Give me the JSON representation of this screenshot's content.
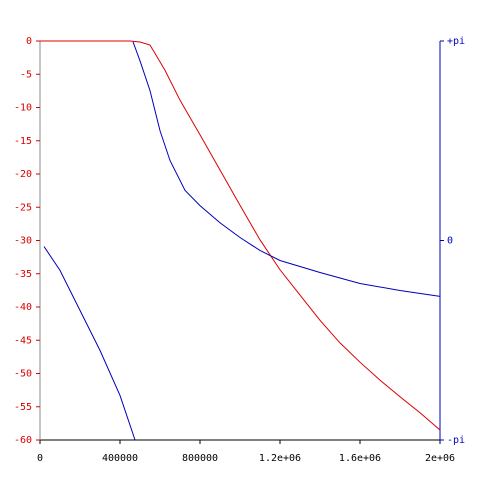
{
  "chart_data": {
    "type": "line",
    "xlim": [
      0,
      2000000
    ],
    "xticks": [
      0,
      400000,
      800000,
      {
        "value": 1200000,
        "label": "1.2e+06"
      },
      {
        "value": 1600000,
        "label": "1.6e+06"
      },
      {
        "value": 2000000,
        "label": "2e+06"
      }
    ],
    "ylim": [
      -60,
      0
    ],
    "yticks": [
      0,
      -5,
      -10,
      -15,
      -20,
      -25,
      -30,
      -35,
      -40,
      -45,
      -50,
      -55,
      -60
    ],
    "y2lim": [
      -3.14159,
      3.14159
    ],
    "y2ticks": [
      {
        "value": 3.14159,
        "label": "+pi"
      },
      0,
      {
        "value": -3.14159,
        "label": "-pi"
      }
    ],
    "series": [
      {
        "color": "#dd0000",
        "x": [
          0,
          450000,
          500000,
          550000,
          625000,
          700000,
          800000,
          900000,
          1000000,
          1100000,
          1200000,
          1300000,
          1400000,
          1500000,
          1600000,
          1700000,
          1800000,
          1900000,
          2000000
        ],
        "values": [
          0,
          0,
          -0.15,
          -0.6,
          -4.4,
          -8.9,
          -14.1,
          -19.4,
          -24.7,
          -29.9,
          -34.4,
          -38.2,
          -42,
          -45.4,
          -48.3,
          -51,
          -53.5,
          -55.9,
          -58.5
        ]
      },
      {
        "color": "#0000bb",
        "axis": "y2",
        "x": [
          20000,
          100000,
          200000,
          300000,
          400000,
          475000,
          null,
          465000,
          500000,
          550000,
          600000,
          650000,
          725000,
          800000,
          900000,
          1000000,
          1100000,
          1200000,
          1400000,
          1600000,
          1800000,
          2000000
        ],
        "values": [
          -0.094,
          -0.47,
          -1.1,
          -1.73,
          -2.44,
          -3.14,
          null,
          3.13,
          2.83,
          2.36,
          1.73,
          1.26,
          0.79,
          0.55,
          0.28,
          0.047,
          -0.157,
          -0.315,
          -0.504,
          -0.677,
          -0.787,
          -0.88
        ]
      }
    ]
  }
}
